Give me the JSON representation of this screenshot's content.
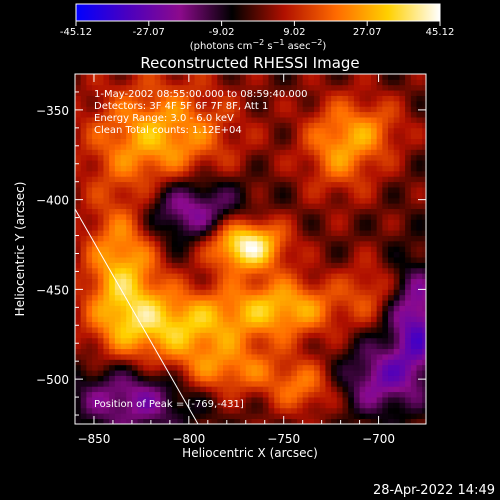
{
  "chart_data": {
    "type": "heatmap",
    "title": "Reconstructed RHESSI Image",
    "xlabel": "Heliocentric X (arcsec)",
    "ylabel": "Heliocentric Y (arcsec)",
    "xlim": [
      -860,
      -675
    ],
    "ylim": [
      -525,
      -330
    ],
    "xticks": [
      -850,
      -800,
      -750,
      -700
    ],
    "yticks": [
      -350,
      -400,
      -450,
      -500
    ],
    "colorbar": {
      "ticks": [
        "-45.12",
        "-27.07",
        "-9.02",
        "9.02",
        "27.07",
        "45.12"
      ],
      "range": [
        -45.12,
        45.12
      ],
      "colors": [
        "#0000ff",
        "#4b00bf",
        "#8c0a8c",
        "#000000",
        "#b01000",
        "#ff6a00",
        "#ffd000",
        "#ffffff"
      ]
    },
    "peak": [
      -769,
      -431
    ],
    "info_lines": [
      "1-May-2002 08:55:00.000 to 08:59:40.000",
      "Detectors: 3F 4F 5F 6F 7F 8F, Att 1",
      "Energy Range: 3.0 - 6.0 keV",
      "Clean     Total counts: 1.12E+04"
    ],
    "peak_label": "Position of Peak = [-769,-431]",
    "sources": [
      {
        "x": -770,
        "y": -425,
        "amp": 45,
        "sx": 14,
        "sy": 10
      },
      {
        "x": -750,
        "y": -460,
        "amp": 28,
        "sx": 22,
        "sy": 12
      },
      {
        "x": -805,
        "y": -470,
        "amp": 30,
        "sx": 25,
        "sy": 14
      },
      {
        "x": -835,
        "y": -440,
        "amp": 30,
        "sx": 14,
        "sy": 30
      },
      {
        "x": -815,
        "y": -365,
        "amp": 28,
        "sx": 26,
        "sy": 22
      },
      {
        "x": -720,
        "y": -370,
        "amp": 24,
        "sx": 14,
        "sy": 18
      },
      {
        "x": -780,
        "y": -495,
        "amp": 20,
        "sx": 22,
        "sy": 10
      },
      {
        "x": -740,
        "y": -505,
        "amp": 18,
        "sx": 12,
        "sy": 10
      },
      {
        "x": -705,
        "y": -450,
        "amp": 12,
        "sx": 10,
        "sy": 12
      },
      {
        "x": -700,
        "y": -360,
        "amp": 12,
        "sx": 12,
        "sy": 12
      },
      {
        "x": -680,
        "y": -470,
        "amp": -28,
        "sx": 10,
        "sy": 22
      },
      {
        "x": -800,
        "y": -405,
        "amp": -26,
        "sx": 20,
        "sy": 14
      },
      {
        "x": -830,
        "y": -510,
        "amp": -24,
        "sx": 22,
        "sy": 14
      },
      {
        "x": -700,
        "y": -500,
        "amp": -22,
        "sx": 14,
        "sy": 14
      }
    ]
  },
  "timestamp": "28-Apr-2022 14:49",
  "colors": {
    "background": "#000000",
    "text": "#ffffff",
    "limb": "#ffffff"
  }
}
